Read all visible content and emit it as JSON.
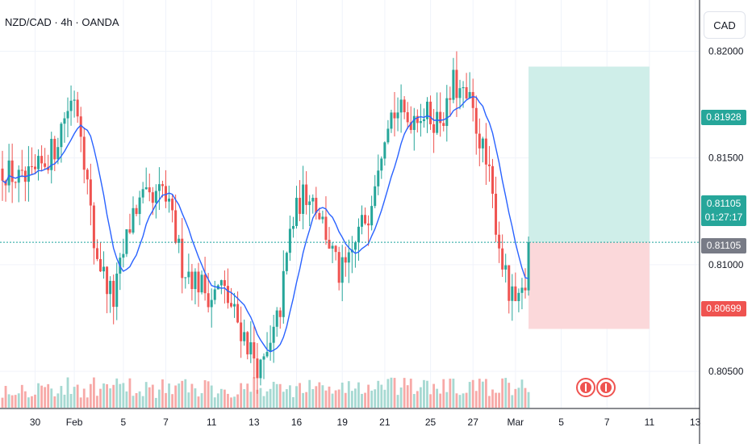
{
  "header": {
    "title": "NZD/CAD · 4h · OANDA",
    "currency": "CAD"
  },
  "colors": {
    "up": "#26a69a",
    "down": "#ef5350",
    "upVol": "#a6d9d2",
    "downVol": "#f7a9a7",
    "ma": "#2962ff",
    "grid": "#f0f3fa",
    "axis": "#131722",
    "profit": "#cfeee9",
    "loss": "#fbd8da",
    "current": "#1ba39c"
  },
  "chart_data": {
    "type": "candlestick",
    "symbol": "NZD/CAD",
    "interval": "4h",
    "source": "OANDA",
    "ylim": [
      0.8033,
      0.8224
    ],
    "price_ticks": [
      "0.80500",
      "0.81000",
      "0.81500",
      "0.82000"
    ],
    "date_ticks": [
      {
        "label": "30",
        "bar": 10
      },
      {
        "label": "Feb",
        "bar": 22
      },
      {
        "label": "5",
        "bar": 37
      },
      {
        "label": "7",
        "bar": 50
      },
      {
        "label": "11",
        "bar": 64
      },
      {
        "label": "13",
        "bar": 77
      },
      {
        "label": "16",
        "bar": 90
      },
      {
        "label": "19",
        "bar": 104
      },
      {
        "label": "21",
        "bar": 117
      },
      {
        "label": "25",
        "bar": 131
      },
      {
        "label": "27",
        "bar": 144
      },
      {
        "label": "Mar",
        "bar": 157
      },
      {
        "label": "5",
        "bar": 171
      },
      {
        "label": "7",
        "bar": 185
      },
      {
        "label": "11",
        "bar": 198
      },
      {
        "label": "13",
        "bar": 212
      }
    ],
    "closes_anchor": [
      [
        0,
        0.8145
      ],
      [
        3,
        0.8142
      ],
      [
        6,
        0.8138
      ],
      [
        9,
        0.814
      ],
      [
        12,
        0.8146
      ],
      [
        16,
        0.8155
      ],
      [
        19,
        0.817
      ],
      [
        22,
        0.818
      ],
      [
        24,
        0.8165
      ],
      [
        28,
        0.811
      ],
      [
        31,
        0.8095
      ],
      [
        34,
        0.8083
      ],
      [
        37,
        0.8105
      ],
      [
        40,
        0.8125
      ],
      [
        43,
        0.813
      ],
      [
        46,
        0.8128
      ],
      [
        49,
        0.8135
      ],
      [
        52,
        0.812
      ],
      [
        55,
        0.81
      ],
      [
        58,
        0.8095
      ],
      [
        61,
        0.809
      ],
      [
        64,
        0.8085
      ],
      [
        67,
        0.809
      ],
      [
        70,
        0.808
      ],
      [
        73,
        0.807
      ],
      [
        76,
        0.806
      ],
      [
        79,
        0.805
      ],
      [
        82,
        0.806
      ],
      [
        85,
        0.808
      ],
      [
        88,
        0.8115
      ],
      [
        91,
        0.813
      ],
      [
        94,
        0.8135
      ],
      [
        97,
        0.8125
      ],
      [
        100,
        0.811
      ],
      [
        103,
        0.8095
      ],
      [
        106,
        0.81
      ],
      [
        109,
        0.8115
      ],
      [
        112,
        0.8125
      ],
      [
        115,
        0.815
      ],
      [
        118,
        0.817
      ],
      [
        121,
        0.8172
      ],
      [
        124,
        0.8168
      ],
      [
        127,
        0.8172
      ],
      [
        130,
        0.817
      ],
      [
        133,
        0.8168
      ],
      [
        136,
        0.8172
      ],
      [
        138,
        0.8185
      ],
      [
        140,
        0.818
      ],
      [
        143,
        0.8175
      ],
      [
        146,
        0.816
      ],
      [
        149,
        0.814
      ],
      [
        152,
        0.811
      ],
      [
        155,
        0.8085
      ],
      [
        158,
        0.808
      ],
      [
        160,
        0.809
      ],
      [
        161,
        0.811
      ]
    ],
    "last_bar": 161,
    "right_bar": 214,
    "moving_average": {
      "type": "SMA",
      "color": "#2962ff"
    },
    "position": {
      "type": "long",
      "entry": 0.81105,
      "target": 0.81928,
      "stop": 0.80699,
      "start_bar": 161,
      "end_bar": 198
    },
    "current_price": "0.81105",
    "countdown": "01:27:17",
    "price_labels": {
      "target": "0.81928",
      "entry": "0.81105",
      "stop": "0.80699"
    }
  }
}
